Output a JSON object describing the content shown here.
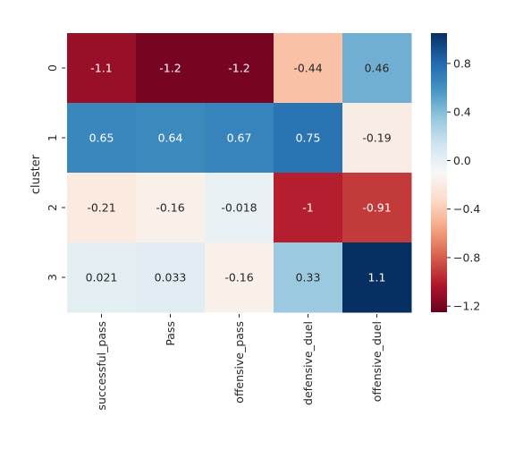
{
  "chart_data": {
    "type": "heatmap",
    "ylabel": "cluster",
    "row_labels": [
      "0",
      "1",
      "2",
      "3"
    ],
    "col_labels": [
      "successful_pass",
      "Pass",
      "offensive_pass",
      "defensive_duel",
      "offensive_duel"
    ],
    "values": [
      [
        -1.1,
        -1.2,
        -1.2,
        -0.44,
        0.46
      ],
      [
        0.65,
        0.64,
        0.67,
        0.75,
        -0.19
      ],
      [
        -0.21,
        -0.16,
        -0.018,
        -1.0,
        -0.91
      ],
      [
        0.021,
        0.033,
        -0.16,
        0.33,
        1.1
      ]
    ],
    "annotations": [
      [
        "-1.1",
        "-1.2",
        "-1.2",
        "-0.44",
        "0.46"
      ],
      [
        "0.65",
        "0.64",
        "0.67",
        "0.75",
        "-0.19"
      ],
      [
        "-0.21",
        "-0.16",
        "-0.018",
        "-1",
        "-0.91"
      ],
      [
        "0.021",
        "0.033",
        "-0.16",
        "0.33",
        "1.1"
      ]
    ],
    "colormap": "RdBu",
    "vmin": -1.25,
    "vmax": 1.05,
    "colorbar_ticks": [
      {
        "value": 0.8,
        "label": "0.8"
      },
      {
        "value": 0.4,
        "label": "0.4"
      },
      {
        "value": 0.0,
        "label": "0.0"
      },
      {
        "value": -0.4,
        "label": "−0.4"
      },
      {
        "value": -0.8,
        "label": "−0.8"
      },
      {
        "value": -1.2,
        "label": "−1.2"
      }
    ]
  }
}
